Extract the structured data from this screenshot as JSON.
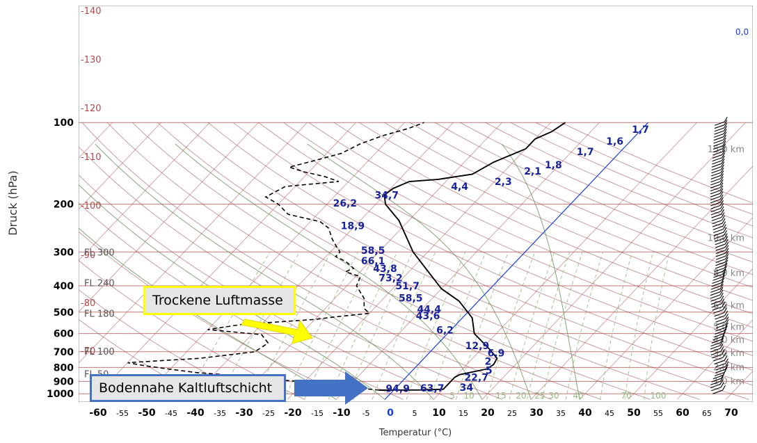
{
  "chart_data": {
    "type": "skew-t",
    "title": "",
    "xlabel": "Temperatur (°C)",
    "ylabel": "Druck (hPa)",
    "xlim": [
      -65,
      75
    ],
    "ylim": [
      1050,
      100
    ],
    "grid": true,
    "pressure_ticks": [
      100,
      200,
      300,
      400,
      500,
      600,
      700,
      800,
      900,
      1000
    ],
    "temperature_ticks": [
      {
        "t": -60,
        "label": "-60",
        "bold": true
      },
      {
        "t": -55,
        "label": "-55",
        "bold": false
      },
      {
        "t": -50,
        "label": "-50",
        "bold": true
      },
      {
        "t": -45,
        "label": "-45",
        "bold": false
      },
      {
        "t": -40,
        "label": "-40",
        "bold": true
      },
      {
        "t": -35,
        "label": "-35",
        "bold": false
      },
      {
        "t": -30,
        "label": "-30",
        "bold": true
      },
      {
        "t": -25,
        "label": "-25",
        "bold": false
      },
      {
        "t": -20,
        "label": "-20",
        "bold": true
      },
      {
        "t": -15,
        "label": "-15",
        "bold": false
      },
      {
        "t": -10,
        "label": "-10",
        "bold": true
      },
      {
        "t": -5,
        "label": "-5",
        "bold": false
      },
      {
        "t": 0,
        "label": "0",
        "bold": true,
        "color": "#1a3fd6"
      },
      {
        "t": 5,
        "label": "5",
        "bold": false
      },
      {
        "t": 10,
        "label": "10",
        "bold": true
      },
      {
        "t": 15,
        "label": "15",
        "bold": false
      },
      {
        "t": 20,
        "label": "20",
        "bold": true
      },
      {
        "t": 25,
        "label": "25",
        "bold": false
      },
      {
        "t": 30,
        "label": "30",
        "bold": true
      },
      {
        "t": 35,
        "label": "35",
        "bold": false
      },
      {
        "t": 40,
        "label": "40",
        "bold": true
      },
      {
        "t": 45,
        "label": "45",
        "bold": false
      },
      {
        "t": 50,
        "label": "50",
        "bold": true
      },
      {
        "t": 55,
        "label": "55",
        "bold": false
      },
      {
        "t": 60,
        "label": "60",
        "bold": true
      },
      {
        "t": 65,
        "label": "65",
        "bold": false
      },
      {
        "t": 70,
        "label": "70",
        "bold": true
      }
    ],
    "isotherm_labels": [
      {
        "t": -140,
        "label": "-140"
      },
      {
        "t": -130,
        "label": "-130"
      },
      {
        "t": -120,
        "label": "-120"
      },
      {
        "t": -110,
        "label": "-110"
      },
      {
        "t": -100,
        "label": "-100"
      },
      {
        "t": -90,
        "label": "-90"
      },
      {
        "t": -80,
        "label": "-80"
      },
      {
        "t": -70,
        "label": "-70"
      }
    ],
    "flight_levels": [
      {
        "p": 300,
        "label": "FL 300"
      },
      {
        "p": 390,
        "label": "FL 240"
      },
      {
        "p": 505,
        "label": "FL 180"
      },
      {
        "p": 697,
        "label": "FL 100"
      },
      {
        "p": 843,
        "label": "FL 50"
      }
    ],
    "height_labels": [
      {
        "p": 125,
        "label": "15,0 km"
      },
      {
        "p": 265,
        "label": "10,0 km"
      },
      {
        "p": 358,
        "label": "8,0 km"
      },
      {
        "p": 470,
        "label": "6,0 km"
      },
      {
        "p": 565,
        "label": "5,0 km"
      },
      {
        "p": 630,
        "label": "4,0 km"
      },
      {
        "p": 705,
        "label": "3,0 km"
      },
      {
        "p": 795,
        "label": "2,0 km"
      },
      {
        "p": 895,
        "label": "1,0 km"
      }
    ],
    "mixing_ratio_labels": [
      "5",
      "10",
      "15",
      "20",
      "25",
      "30",
      "40",
      "70",
      "100"
    ],
    "zero_isotherm_label": "0,0",
    "series": [
      {
        "name": "",
        "role": "temperature",
        "color": "#000000",
        "style": "solid",
        "points": [
          {
            "p": 970,
            "t": -3
          },
          {
            "p": 968,
            "t": 6
          },
          {
            "p": 962,
            "t": 10
          },
          {
            "p": 930,
            "t": 10
          },
          {
            "p": 870,
            "t": 10
          },
          {
            "p": 850,
            "t": 10.5
          },
          {
            "p": 810,
            "t": 15
          },
          {
            "p": 780,
            "t": 15.5
          },
          {
            "p": 740,
            "t": 15
          },
          {
            "p": 690,
            "t": 12
          },
          {
            "p": 600,
            "t": 5.5
          },
          {
            "p": 525,
            "t": 2
          },
          {
            "p": 455,
            "t": -4
          },
          {
            "p": 410,
            "t": -10
          },
          {
            "p": 355,
            "t": -16
          },
          {
            "p": 300,
            "t": -23
          },
          {
            "p": 230,
            "t": -32
          },
          {
            "p": 200,
            "t": -38
          },
          {
            "p": 185,
            "t": -40
          },
          {
            "p": 175,
            "t": -39.5
          },
          {
            "p": 165,
            "t": -37.5
          },
          {
            "p": 162,
            "t": -32
          },
          {
            "p": 155,
            "t": -26
          },
          {
            "p": 140,
            "t": -24
          },
          {
            "p": 125,
            "t": -20
          },
          {
            "p": 115,
            "t": -20
          },
          {
            "p": 108,
            "t": -18
          },
          {
            "p": 100,
            "t": -17
          }
        ]
      },
      {
        "name": "",
        "role": "dewpoint",
        "color": "#000000",
        "style": "dashed",
        "points": [
          {
            "p": 970,
            "t": -3
          },
          {
            "p": 955,
            "t": -7
          },
          {
            "p": 930,
            "t": -12
          },
          {
            "p": 905,
            "t": -20
          },
          {
            "p": 880,
            "t": -28
          },
          {
            "p": 855,
            "t": -36
          },
          {
            "p": 835,
            "t": -44
          },
          {
            "p": 812,
            "t": -50
          },
          {
            "p": 788,
            "t": -56
          },
          {
            "p": 768,
            "t": -60
          },
          {
            "p": 740,
            "t": -46
          },
          {
            "p": 700,
            "t": -36
          },
          {
            "p": 650,
            "t": -35
          },
          {
            "p": 605,
            "t": -38
          },
          {
            "p": 580,
            "t": -50
          },
          {
            "p": 555,
            "t": -44
          },
          {
            "p": 532,
            "t": -30
          },
          {
            "p": 520,
            "t": -26
          },
          {
            "p": 505,
            "t": -20
          },
          {
            "p": 485,
            "t": -22
          },
          {
            "p": 445,
            "t": -24
          },
          {
            "p": 400,
            "t": -28
          },
          {
            "p": 370,
            "t": -29
          },
          {
            "p": 355,
            "t": -33
          },
          {
            "p": 345,
            "t": -32
          },
          {
            "p": 325,
            "t": -35
          },
          {
            "p": 312,
            "t": -38
          },
          {
            "p": 300,
            "t": -38
          },
          {
            "p": 285,
            "t": -40
          },
          {
            "p": 270,
            "t": -42
          },
          {
            "p": 245,
            "t": -45
          },
          {
            "p": 232,
            "t": -48
          },
          {
            "p": 218,
            "t": -56
          },
          {
            "p": 200,
            "t": -60
          },
          {
            "p": 188,
            "t": -64
          },
          {
            "p": 172,
            "t": -62
          },
          {
            "p": 165,
            "t": -52
          },
          {
            "p": 158,
            "t": -56
          },
          {
            "p": 152,
            "t": -61
          },
          {
            "p": 146,
            "t": -65
          },
          {
            "p": 140,
            "t": -62
          },
          {
            "p": 130,
            "t": -57
          },
          {
            "p": 120,
            "t": -55
          },
          {
            "p": 112,
            "t": -52
          },
          {
            "p": 105,
            "t": -48
          },
          {
            "p": 100,
            "t": -46
          }
        ]
      }
    ],
    "data_labels": [
      {
        "p": 106,
        "t": -2,
        "label": "1,7"
      },
      {
        "p": 117,
        "t": -5,
        "label": "1,6"
      },
      {
        "p": 128,
        "t": -9,
        "label": "1,7"
      },
      {
        "p": 143,
        "t": -13,
        "label": "1,8"
      },
      {
        "p": 151,
        "t": -16,
        "label": "2,1"
      },
      {
        "p": 165,
        "t": -20,
        "label": "2,3"
      },
      {
        "p": 172,
        "t": -28,
        "label": "4,4"
      },
      {
        "p": 185,
        "t": -42,
        "label": "34,7"
      },
      {
        "p": 198,
        "t": -49,
        "label": "26,2"
      },
      {
        "p": 240,
        "t": -43,
        "label": "18,9"
      },
      {
        "p": 296,
        "t": -34,
        "label": "58,5"
      },
      {
        "p": 323,
        "t": -32,
        "label": "66,1"
      },
      {
        "p": 345,
        "t": -28,
        "label": "43,8"
      },
      {
        "p": 374,
        "t": -25,
        "label": "73,2"
      },
      {
        "p": 400,
        "t": -20,
        "label": "51,7"
      },
      {
        "p": 443,
        "t": -17,
        "label": "58,5"
      },
      {
        "p": 488,
        "t": -11,
        "label": "44,4"
      },
      {
        "p": 515,
        "t": -10,
        "label": "43,6"
      },
      {
        "p": 582,
        "t": -3,
        "label": "6,2"
      },
      {
        "p": 665,
        "t": 6,
        "label": "12,9"
      },
      {
        "p": 708,
        "t": 12,
        "label": "6,9"
      },
      {
        "p": 758,
        "t": 13,
        "label": "2"
      },
      {
        "p": 820,
        "t": 15,
        "label": "5"
      },
      {
        "p": 870,
        "t": 12,
        "label": "22,7"
      },
      {
        "p": 948,
        "t": 13,
        "label": "34"
      },
      {
        "p": 952,
        "t": 5,
        "label": "63,7"
      },
      {
        "p": 955,
        "t": -2,
        "label": "94,9"
      }
    ]
  },
  "annotations": {
    "dry_air_mass": "Trockene Luftmasse",
    "cold_layer": "Bodennahe Kaltluftschicht"
  },
  "colors": {
    "isobar": "#b04a4a",
    "isotherm": "#b04a4a",
    "dry_adiabat": "#a0494f",
    "moist_adiabat": "#5a8a4a",
    "mixing_ratio": "#8fbd7f",
    "zero_isotherm": "#1a3fd6",
    "data_label": "#17249c",
    "flight_level_text": "#555555",
    "isotherm_text": "#b04a4a",
    "yellow_arrow": "#ffff00",
    "blue_arrow": "#4472c4"
  }
}
